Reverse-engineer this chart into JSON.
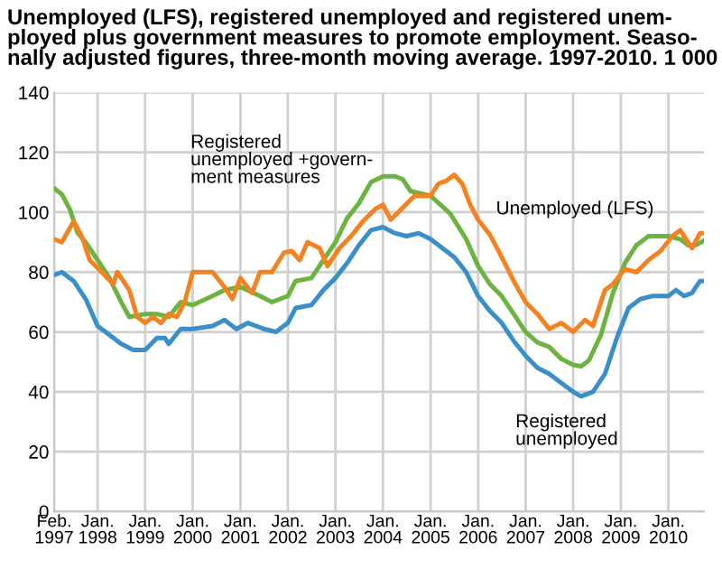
{
  "chart_data": {
    "type": "line",
    "title": "Unemployed (LFS), registered unemployed and registered unem-\nployed plus government measures to promote employment. Seaso-\nnally adjusted figures, three-month moving average. 1997-2010. 1 000",
    "xlim": [
      "1997-02",
      "2010-10"
    ],
    "xticks": [
      {
        "value": "1997-02",
        "label": "Feb.\n1997"
      },
      {
        "value": "1998-01",
        "label": "Jan.\n1998"
      },
      {
        "value": "1999-01",
        "label": "Jan.\n1999"
      },
      {
        "value": "2000-01",
        "label": "Jan.\n2000"
      },
      {
        "value": "2001-01",
        "label": "Jan.\n2001"
      },
      {
        "value": "2002-01",
        "label": "Jan.\n2002"
      },
      {
        "value": "2003-01",
        "label": "Jan.\n2003"
      },
      {
        "value": "2004-01",
        "label": "Jan.\n2004"
      },
      {
        "value": "2005-01",
        "label": "Jan.\n2005"
      },
      {
        "value": "2006-01",
        "label": "Jan.\n2006"
      },
      {
        "value": "2007-01",
        "label": "Jan.\n2007"
      },
      {
        "value": "2008-01",
        "label": "Jan.\n2008"
      },
      {
        "value": "2009-01",
        "label": "Jan.\n2009"
      },
      {
        "value": "2010-01",
        "label": "Jan.\n2010"
      }
    ],
    "ylim": [
      0,
      140
    ],
    "yticks": [
      0,
      20,
      40,
      60,
      80,
      100,
      120,
      140
    ],
    "grid": true,
    "legend": false,
    "marker": "none",
    "line_style": "solid",
    "series": [
      {
        "name": "Registered\nunemployed",
        "color": "#3a8fc9",
        "x": [
          "1997-02",
          "1997-04",
          "1997-07",
          "1997-10",
          "1998-01",
          "1998-04",
          "1998-07",
          "1998-10",
          "1999-01",
          "1999-04",
          "1999-06",
          "1999-07",
          "1999-10",
          "2000-01",
          "2000-06",
          "2000-09",
          "2000-12",
          "2001-03",
          "2001-07",
          "2001-10",
          "2002-01",
          "2002-03",
          "2002-07",
          "2002-10",
          "2003-01",
          "2003-04",
          "2003-07",
          "2003-10",
          "2004-01",
          "2004-04",
          "2004-07",
          "2004-10",
          "2005-01",
          "2005-04",
          "2005-07",
          "2005-10",
          "2006-01",
          "2006-04",
          "2006-07",
          "2006-10",
          "2007-01",
          "2007-04",
          "2007-07",
          "2007-10",
          "2008-01",
          "2008-03",
          "2008-06",
          "2008-09",
          "2008-12",
          "2009-03",
          "2009-06",
          "2009-09",
          "2010-01",
          "2010-03",
          "2010-05",
          "2010-07",
          "2010-09",
          "2010-10"
        ],
        "values": [
          79,
          80,
          77,
          71,
          62,
          59,
          56,
          54,
          54,
          58,
          58,
          56,
          61,
          61,
          62,
          64,
          61,
          63,
          61,
          60,
          63,
          68,
          69,
          74,
          78,
          83,
          89,
          94,
          95,
          93,
          92,
          93,
          91,
          88,
          85,
          80,
          72,
          67,
          63,
          57,
          52,
          48,
          46,
          43,
          40,
          38.5,
          40,
          46,
          58,
          68,
          71,
          72,
          72,
          74,
          72,
          73,
          77,
          77
        ]
      },
      {
        "name": "Registered\nunemployed +govern-\nment measures",
        "color": "#6db33f",
        "x": [
          "1997-02",
          "1997-04",
          "1997-06",
          "1997-08",
          "1997-10",
          "1998-01",
          "1998-04",
          "1998-07",
          "1998-09",
          "1999-01",
          "1999-04",
          "1999-07",
          "1999-10",
          "2000-01",
          "2000-06",
          "2000-09",
          "2001-01",
          "2001-06",
          "2001-09",
          "2002-01",
          "2002-03",
          "2002-07",
          "2002-10",
          "2003-01",
          "2003-04",
          "2003-07",
          "2003-10",
          "2004-01",
          "2004-04",
          "2004-06",
          "2004-08",
          "2005-01",
          "2005-06",
          "2005-10",
          "2006-01",
          "2006-04",
          "2006-07",
          "2006-10",
          "2007-01",
          "2007-04",
          "2007-07",
          "2007-10",
          "2008-01",
          "2008-03",
          "2008-05",
          "2008-08",
          "2008-11",
          "2009-02",
          "2009-05",
          "2009-08",
          "2010-01",
          "2010-04",
          "2010-06",
          "2010-08",
          "2010-10"
        ],
        "values": [
          108,
          106,
          101,
          93,
          90,
          84,
          78,
          70,
          65,
          66,
          66,
          65,
          70,
          69,
          72,
          74,
          75,
          72,
          70,
          72,
          77,
          78,
          84,
          90,
          98,
          103,
          110,
          112,
          112,
          111,
          107,
          105.5,
          99.5,
          91,
          82,
          76,
          72,
          66,
          60,
          56.5,
          55,
          51,
          49,
          48.5,
          50.5,
          59,
          73,
          83,
          89,
          92,
          92,
          91,
          89,
          89,
          90.5
        ]
      },
      {
        "name": "Unemployed (LFS)",
        "color": "#f58220",
        "x": [
          "1997-02",
          "1997-04",
          "1997-07",
          "1997-09",
          "1997-11",
          "1998-02",
          "1998-05",
          "1998-06",
          "1998-09",
          "1998-11",
          "1999-01",
          "1999-03",
          "1999-05",
          "1999-07",
          "1999-09",
          "1999-11",
          "2000-01",
          "2000-06",
          "2000-09",
          "2000-11",
          "2001-01",
          "2001-04",
          "2001-06",
          "2001-09",
          "2001-12",
          "2002-02",
          "2002-04",
          "2002-06",
          "2002-09",
          "2002-11",
          "2003-02",
          "2003-05",
          "2003-08",
          "2003-11",
          "2004-01",
          "2004-03",
          "2004-06",
          "2004-09",
          "2005-01",
          "2005-03",
          "2005-05",
          "2005-07",
          "2005-09",
          "2005-11",
          "2006-01",
          "2006-04",
          "2006-07",
          "2006-10",
          "2007-01",
          "2007-04",
          "2007-07",
          "2007-10",
          "2008-01",
          "2008-04",
          "2008-06",
          "2008-09",
          "2008-11",
          "2009-02",
          "2009-05",
          "2009-08",
          "2009-11",
          "2010-02",
          "2010-04",
          "2010-07",
          "2010-09",
          "2010-10"
        ],
        "values": [
          91,
          90,
          97,
          92,
          84,
          80,
          76,
          80,
          74,
          65,
          63,
          65,
          63,
          66,
          65,
          70,
          80,
          80,
          75,
          71,
          78,
          73,
          80,
          80,
          86.5,
          87,
          84,
          90,
          88,
          82,
          88,
          92,
          97,
          101,
          102.5,
          97.5,
          101.5,
          105.5,
          105.5,
          109.5,
          110.5,
          112.5,
          109.5,
          102.5,
          97.5,
          92.5,
          85,
          77,
          70,
          66,
          61,
          63,
          60,
          64,
          62,
          74,
          76,
          81,
          80,
          84,
          87,
          92,
          94,
          88,
          93,
          93
        ]
      }
    ]
  }
}
